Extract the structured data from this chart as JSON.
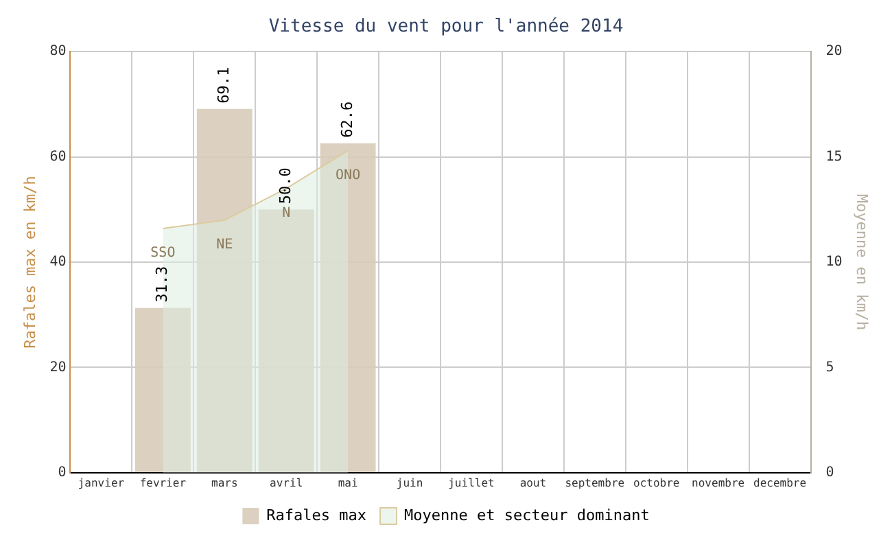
{
  "chart_data": {
    "type": "bar",
    "title": "Vitesse du vent pour l'année 2014",
    "categories": [
      "janvier",
      "fevrier",
      "mars",
      "avril",
      "mai",
      "juin",
      "juillet",
      "aout",
      "septembre",
      "octobre",
      "novembre",
      "decembre"
    ],
    "series": [
      {
        "name": "Rafales max",
        "color": "#d8ccb9",
        "values": [
          null,
          31.3,
          69.1,
          50.0,
          62.6,
          null,
          null,
          null,
          null,
          null,
          null,
          null
        ],
        "value_labels": [
          null,
          "31.3",
          "69.1",
          "50.0",
          "62.6",
          null,
          null,
          null,
          null,
          null,
          null,
          null
        ]
      },
      {
        "name": "Moyenne et secteur dominant",
        "type": "area",
        "axis": "y2",
        "color": "#dccba0",
        "values": [
          null,
          11.6,
          12.0,
          13.5,
          15.3,
          null,
          null,
          null,
          null,
          null,
          null,
          null
        ]
      }
    ],
    "ylabel": "Rafales max en km/h",
    "y2label": "Moyenne en km/h",
    "ylim": [
      0,
      80
    ],
    "yticks": [
      0,
      20,
      40,
      60,
      80
    ],
    "y2lim": [
      0,
      20
    ],
    "y2ticks": [
      0,
      5,
      10,
      15,
      20
    ],
    "annotations": [
      "SSO",
      "NE",
      "N",
      "ONO"
    ],
    "grid": true,
    "legend": "bottom"
  }
}
